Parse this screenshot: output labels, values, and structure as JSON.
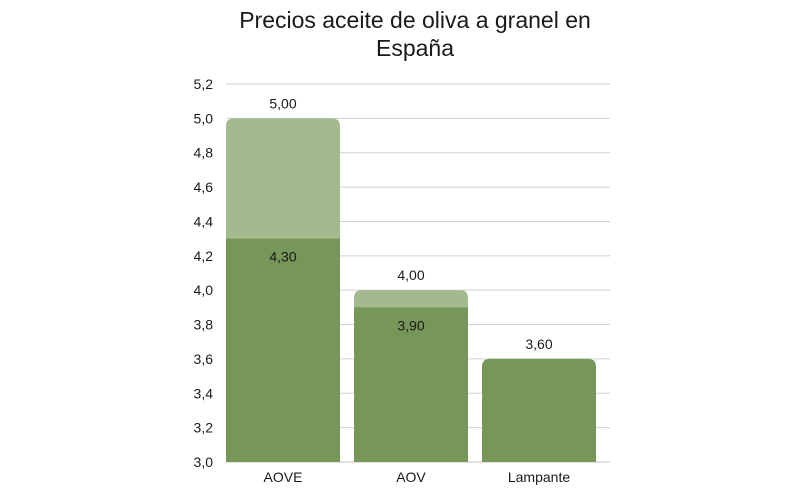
{
  "chart_data": {
    "type": "bar",
    "title": "Precios aceite de oliva a granel en España",
    "xlabel": "",
    "ylabel": "",
    "ylim": [
      3.0,
      5.2
    ],
    "yticks": [
      "3,0",
      "3,2",
      "3,4",
      "3,6",
      "3,8",
      "4,0",
      "4,2",
      "4,4",
      "4,6",
      "4,8",
      "5,0",
      "5,2"
    ],
    "categories": [
      "AOVE",
      "AOV",
      "Lampante"
    ],
    "series": [
      {
        "color": "#77965a",
        "values": [
          4.3,
          3.9,
          3.6
        ],
        "labels": [
          "4,30",
          "3,90",
          "3,60"
        ]
      },
      {
        "color": "#a3b98e",
        "values": [
          5.0,
          4.0,
          null
        ],
        "labels": [
          "5,00",
          "4,00",
          ""
        ]
      }
    ],
    "grid": true,
    "legend": "none"
  }
}
